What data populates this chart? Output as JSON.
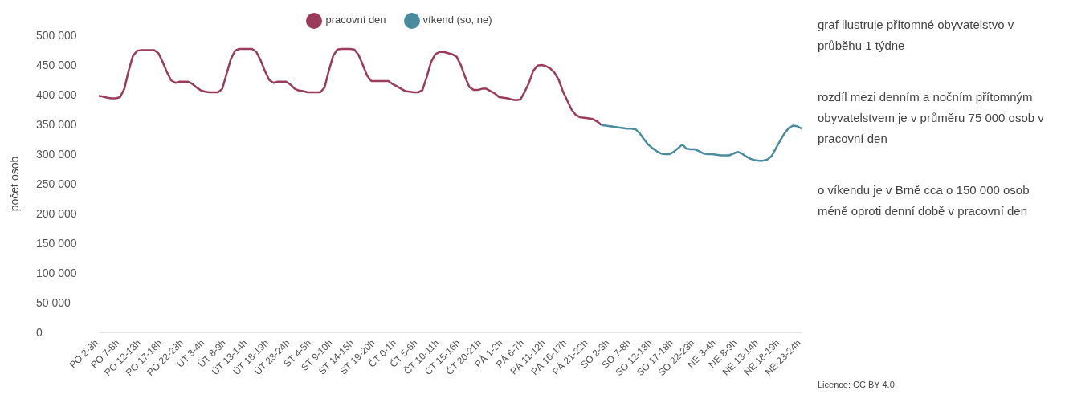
{
  "chart_data": {
    "type": "line",
    "ylabel": "počet osob",
    "legend": "top",
    "categories": [
      "PO 2-3h",
      null,
      null,
      null,
      null,
      "PO 7-8h",
      null,
      null,
      null,
      null,
      "PO 12-13h",
      null,
      null,
      null,
      null,
      "PO 17-18h",
      null,
      null,
      null,
      null,
      "PO 22-23h",
      null,
      null,
      null,
      null,
      "ÚT 3-4h",
      null,
      null,
      null,
      null,
      "ÚT 8-9h",
      null,
      null,
      null,
      null,
      "ÚT 13-14h",
      null,
      null,
      null,
      null,
      "ÚT 18-19h",
      null,
      null,
      null,
      null,
      "ÚT 23-24h",
      null,
      null,
      null,
      null,
      "ST 4-5h",
      null,
      null,
      null,
      null,
      "ST 9-10h",
      null,
      null,
      null,
      null,
      "ST 14-15h",
      null,
      null,
      null,
      null,
      "ST 19-20h",
      null,
      null,
      null,
      null,
      "ČT 0-1h",
      null,
      null,
      null,
      null,
      "ČT 5-6h",
      null,
      null,
      null,
      null,
      "ČT 10-11h",
      null,
      null,
      null,
      null,
      "ČT 15-16h",
      null,
      null,
      null,
      null,
      "ČT 20-21h",
      null,
      null,
      null,
      null,
      "PÁ 1-2h",
      null,
      null,
      null,
      null,
      "PÁ 6-7h",
      null,
      null,
      null,
      null,
      "PÁ 11-12h",
      null,
      null,
      null,
      null,
      "PÁ 16-17h",
      null,
      null,
      null,
      null,
      "PÁ 21-22h",
      null,
      null,
      null,
      null,
      "SO 2-3h",
      null,
      null,
      null,
      null,
      "SO 7-8h",
      null,
      null,
      null,
      null,
      "SO 12-13h",
      null,
      null,
      null,
      null,
      "SO 17-18h",
      null,
      null,
      null,
      null,
      "SO 22-23h",
      null,
      null,
      null,
      null,
      "NE 3-4h",
      null,
      null,
      null,
      null,
      "NE 8-9h",
      null,
      null,
      null,
      null,
      "NE 13-14h",
      null,
      null,
      null,
      null,
      "NE 18-19h",
      null,
      null,
      null,
      null,
      "NE 23-24h"
    ],
    "series": [
      {
        "name": "pracovní den",
        "color": "#9b3b5c",
        "values": [
          398000,
          397000,
          395000,
          394000,
          394000,
          396000,
          410000,
          440000,
          465000,
          474000,
          475000,
          475000,
          475000,
          475000,
          470000,
          455000,
          438000,
          424000,
          420000,
          422000,
          422000,
          422000,
          418000,
          412000,
          407000,
          405000,
          404000,
          404000,
          404000,
          410000,
          435000,
          460000,
          474000,
          477000,
          477000,
          477000,
          477000,
          472000,
          458000,
          440000,
          425000,
          420000,
          422000,
          422000,
          422000,
          417000,
          410000,
          407000,
          406000,
          404000,
          404000,
          404000,
          404000,
          412000,
          440000,
          465000,
          476000,
          477000,
          477000,
          477000,
          476000,
          467000,
          450000,
          432000,
          423000,
          423000,
          423000,
          423000,
          423000,
          418000,
          414000,
          410000,
          406000,
          405000,
          404000,
          404000,
          408000,
          430000,
          455000,
          468000,
          472000,
          472000,
          470000,
          468000,
          464000,
          450000,
          430000,
          413000,
          408000,
          408000,
          410000,
          410000,
          406000,
          402000,
          396000,
          395000,
          394000,
          392000,
          391000,
          392000,
          405000,
          420000,
          440000,
          449000,
          450000,
          448000,
          444000,
          437000,
          425000,
          405000,
          390000,
          375000,
          366000,
          362000,
          361000,
          360000,
          359000,
          355000,
          349000,
          null,
          null,
          null,
          null,
          null,
          null,
          null,
          null,
          null,
          null,
          null,
          null,
          null,
          null,
          null,
          null,
          null,
          null,
          null,
          null,
          null,
          null,
          null,
          null,
          null,
          null,
          null,
          null,
          null,
          null,
          null,
          null,
          null,
          null,
          null,
          null,
          null,
          null,
          null,
          null,
          null,
          null,
          null,
          null,
          null,
          null,
          null
        ]
      },
      {
        "name": "víkend (so, ne)",
        "color": "#4a8c9e",
        "values": [
          null,
          null,
          null,
          null,
          null,
          null,
          null,
          null,
          null,
          null,
          null,
          null,
          null,
          null,
          null,
          null,
          null,
          null,
          null,
          null,
          null,
          null,
          null,
          null,
          null,
          null,
          null,
          null,
          null,
          null,
          null,
          null,
          null,
          null,
          null,
          null,
          null,
          null,
          null,
          null,
          null,
          null,
          null,
          null,
          null,
          null,
          null,
          null,
          null,
          null,
          null,
          null,
          null,
          null,
          null,
          null,
          null,
          null,
          null,
          null,
          null,
          null,
          null,
          null,
          null,
          null,
          null,
          null,
          null,
          null,
          null,
          null,
          null,
          null,
          null,
          null,
          null,
          null,
          null,
          null,
          null,
          null,
          null,
          null,
          null,
          null,
          null,
          null,
          null,
          null,
          null,
          null,
          null,
          null,
          null,
          null,
          null,
          null,
          null,
          null,
          null,
          null,
          null,
          null,
          null,
          null,
          null,
          null,
          null,
          null,
          null,
          null,
          null,
          null,
          null,
          null,
          null,
          null,
          349000,
          348000,
          347000,
          346000,
          345000,
          344000,
          343000,
          343000,
          342000,
          335000,
          325000,
          316000,
          310000,
          305000,
          301000,
          300000,
          300000,
          304000,
          310000,
          316000,
          309000,
          308000,
          308000,
          305000,
          301000,
          300000,
          300000,
          299000,
          298000,
          298000,
          298000,
          301000,
          304000,
          301000,
          296000,
          292000,
          290000,
          289000,
          289000,
          291000,
          297000,
          310000,
          323000,
          335000,
          344000,
          348000,
          347000,
          343000
        ]
      }
    ],
    "ylim": [
      0,
      500000
    ],
    "yticks": [
      0,
      {
        "value": 50000,
        "label": "50 000"
      },
      {
        "value": 100000,
        "label": "100 000"
      },
      {
        "value": 150000,
        "label": "150 000"
      },
      {
        "value": 200000,
        "label": "200 000"
      },
      {
        "value": 250000,
        "label": "250 000"
      },
      {
        "value": 300000,
        "label": "300 000"
      },
      {
        "value": 350000,
        "label": "350 000"
      },
      {
        "value": 400000,
        "label": "400 000"
      },
      {
        "value": 450000,
        "label": "450 000"
      },
      {
        "value": 500000,
        "label": "500 000"
      }
    ],
    "annotations": [
      "graf ilustruje přítomné obyvatelstvo v průběhu 1 týdne",
      "rozdíl mezi denním a nočním přítomným obyvatelstvem je v průměru 75 000 osob v pracovní den",
      "o víkendu je v Brně cca o 150 000 osob méně oproti denní době v pracovní den",
      "Licence: CC BY 4.0"
    ]
  }
}
